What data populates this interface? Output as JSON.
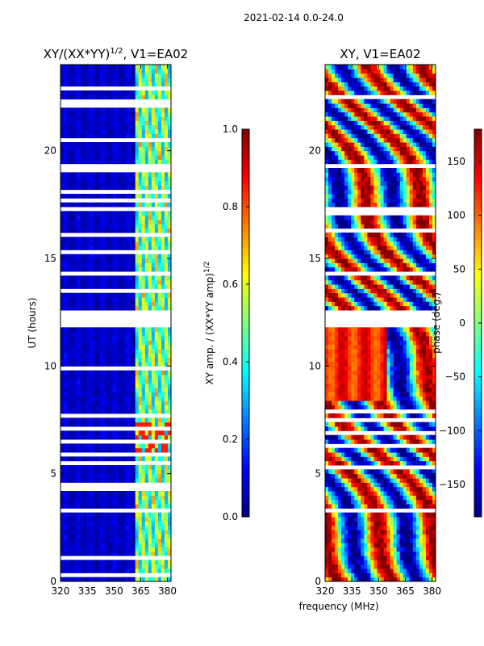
{
  "suptitle": "2021-02-14 0.0-24.0",
  "xlabel": "frequency (MHz)",
  "colors": {
    "jet_stops": [
      "#00007f",
      "#0000ff",
      "#007fff",
      "#00ffff",
      "#7fff7f",
      "#ffff00",
      "#ff7f00",
      "#ff0000",
      "#7f0000"
    ],
    "gap": "#ffffff",
    "frame": "#000000"
  },
  "chart_data": [
    {
      "type": "heatmap",
      "name": "amplitude",
      "title": "XY/(XX*YY)",
      "title_sup": "1/2",
      "title_suffix": ", V1=EA02",
      "xlabel": "",
      "ylabel": "UT (hours)",
      "xlim": [
        320,
        382
      ],
      "ylim": [
        0,
        24
      ],
      "xticks": [
        320,
        335,
        350,
        365,
        380
      ],
      "xtick_labels": [
        "320",
        "335",
        "350",
        "365",
        "380"
      ],
      "yticks": [
        0,
        5,
        10,
        15,
        20
      ],
      "ytick_labels": [
        "0",
        "5",
        "10",
        "15",
        "20"
      ],
      "colorbar": {
        "label": "XY amp. / (XX*YY amp)",
        "label_sup": "1/2",
        "range": [
          0.0,
          1.0
        ],
        "ticks": [
          0.0,
          0.2,
          0.4,
          0.6,
          0.8,
          1.0
        ],
        "tick_labels": [
          "0.0",
          "0.2",
          "0.4",
          "0.6",
          "0.8",
          "1.0"
        ]
      },
      "flagged_hour_ranges": [
        [
          0.3,
          0.45
        ],
        [
          1.05,
          1.12
        ],
        [
          1.4,
          1.48
        ],
        [
          1.8,
          1.86
        ],
        [
          2.0,
          2.06
        ],
        [
          2.8,
          2.86
        ],
        [
          3.3,
          3.5
        ],
        [
          3.8,
          3.86
        ],
        [
          4.3,
          4.36
        ],
        [
          4.5,
          4.55
        ],
        [
          4.75,
          4.8
        ],
        [
          5.5,
          5.65
        ],
        [
          5.9,
          5.95
        ],
        [
          6.45,
          6.5
        ],
        [
          6.8,
          6.86
        ],
        [
          7.1,
          7.15
        ],
        [
          7.4,
          7.45
        ],
        [
          7.7,
          7.75
        ],
        [
          7.95,
          8.05
        ],
        [
          9.85,
          9.95
        ],
        [
          11.85,
          12.7
        ],
        [
          13.5,
          13.55
        ],
        [
          14.3,
          14.4
        ],
        [
          14.8,
          14.85
        ],
        [
          15.3,
          15.35
        ],
        [
          16.1,
          16.15
        ],
        [
          16.75,
          16.8
        ],
        [
          17.2,
          17.5
        ],
        [
          17.7,
          17.75
        ],
        [
          18.1,
          18.15
        ],
        [
          18.6,
          18.65
        ],
        [
          19.1,
          19.4
        ],
        [
          20.5,
          20.65
        ],
        [
          21.2,
          21.25
        ],
        [
          21.6,
          21.65
        ],
        [
          22.1,
          22.35
        ],
        [
          22.55,
          22.6
        ],
        [
          22.9,
          22.95
        ]
      ],
      "features": {
        "low_band_mhz": [
          320,
          362
        ],
        "low_band_value": 0.05,
        "high_band_mhz": [
          362,
          382
        ],
        "high_band_value_range": [
          0.3,
          0.75
        ],
        "bright_hour_range": [
          6.0,
          7.3
        ],
        "bright_value": 0.85
      }
    },
    {
      "type": "heatmap",
      "name": "phase",
      "title": "XY, V1=EA02",
      "xlabel": "frequency (MHz)",
      "ylabel": "",
      "xlim": [
        320,
        382
      ],
      "ylim": [
        0,
        24
      ],
      "xticks": [
        320,
        335,
        350,
        365,
        380
      ],
      "xtick_labels": [
        "320",
        "335",
        "350",
        "365",
        "380"
      ],
      "yticks": [
        0,
        5,
        10,
        15,
        20
      ],
      "ytick_labels": [
        "0",
        "5",
        "10",
        "15",
        "20"
      ],
      "colorbar": {
        "label": "phase (deg.)",
        "range": [
          -180,
          180
        ],
        "ticks": [
          -150,
          -100,
          -50,
          0,
          50,
          100,
          150
        ],
        "tick_labels": [
          "−150",
          "−100",
          "−50",
          "0",
          "50",
          "100",
          "150"
        ]
      },
      "flagged_hour_ranges": [
        [
          0.15,
          0.2
        ],
        [
          0.6,
          0.65
        ],
        [
          1.6,
          1.65
        ],
        [
          2.2,
          2.25
        ],
        [
          3.3,
          3.45
        ],
        [
          4.4,
          4.45
        ],
        [
          5.2,
          5.3
        ],
        [
          5.8,
          5.85
        ],
        [
          6.3,
          6.35
        ],
        [
          6.9,
          6.95
        ],
        [
          7.5,
          7.55
        ],
        [
          7.9,
          8.0
        ],
        [
          8.2,
          8.25
        ],
        [
          11.85,
          12.7
        ],
        [
          13.4,
          13.45
        ],
        [
          14.2,
          14.3
        ],
        [
          14.8,
          14.85
        ],
        [
          15.6,
          15.65
        ],
        [
          16.3,
          16.35
        ],
        [
          17.1,
          17.4
        ],
        [
          18.0,
          18.05
        ],
        [
          18.6,
          18.7
        ],
        [
          19.3,
          19.35
        ],
        [
          20.0,
          20.05
        ],
        [
          20.6,
          20.7
        ],
        [
          21.4,
          21.45
        ],
        [
          22.0,
          22.05
        ],
        [
          22.5,
          22.6
        ]
      ],
      "features": {
        "in_phase_hour_range": [
          8.3,
          11.8
        ],
        "in_phase_mhz": [
          320,
          355
        ],
        "in_phase_value": 125
      }
    }
  ]
}
